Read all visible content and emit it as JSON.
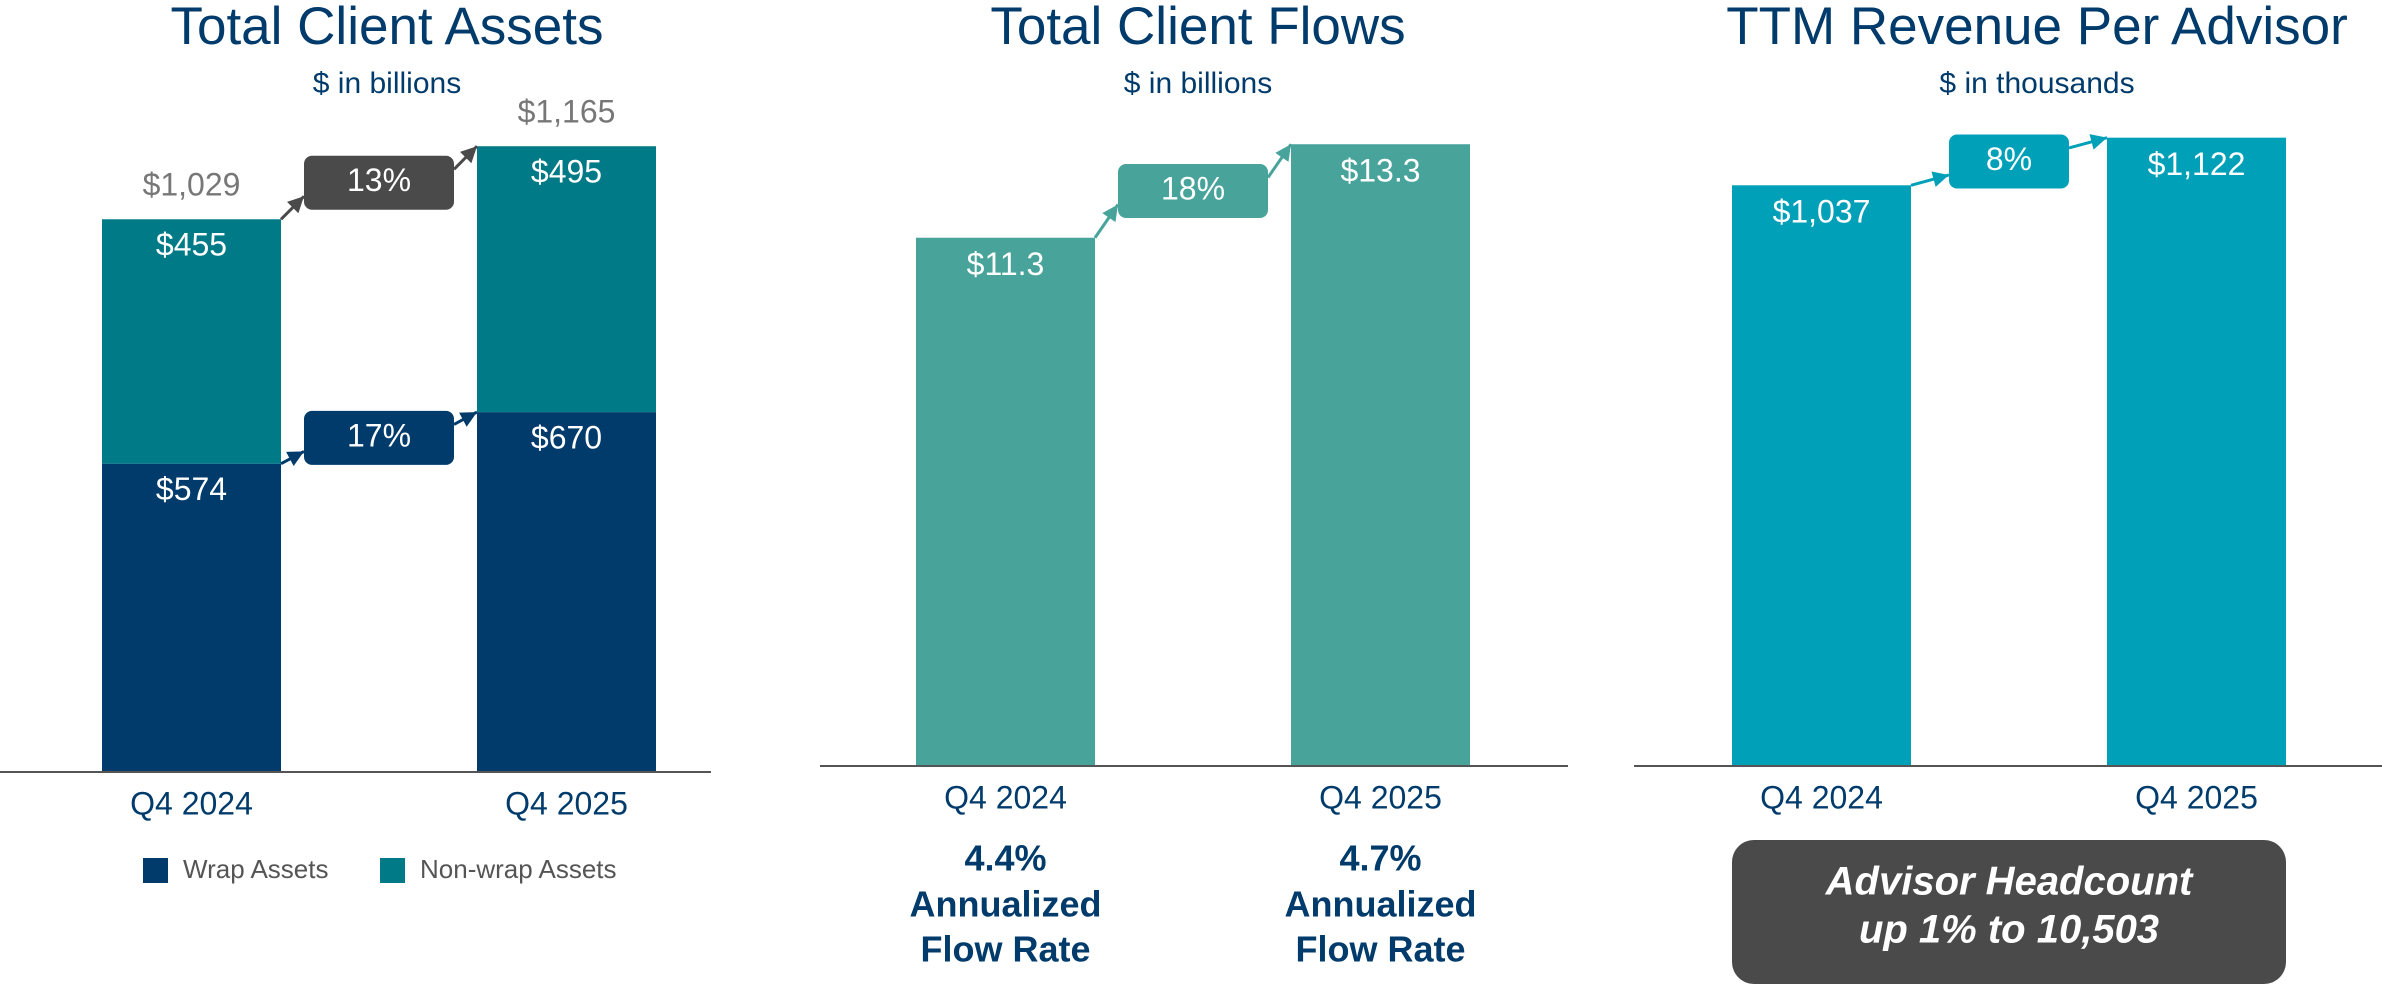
{
  "chart_data": [
    {
      "type": "stacked_bar",
      "title": "Total Client Assets",
      "subtitle": "$ in billions",
      "categories": [
        "Q4 2024",
        "Q4 2025"
      ],
      "series": [
        {
          "name": "Wrap Assets",
          "color": "#003b6b",
          "values": [
            574,
            670
          ],
          "value_labels": [
            "$574",
            "$670"
          ],
          "growth_label": "17%"
        },
        {
          "name": "Non-wrap Assets",
          "color": "#007a86",
          "values": [
            455,
            495
          ],
          "value_labels": [
            "$455",
            "$495"
          ]
        }
      ],
      "totals": [
        1029,
        1165
      ],
      "total_labels": [
        "$1,029",
        "$1,165"
      ],
      "total_growth_label": "13%",
      "total_growth_color": "#4a4a4a",
      "ylim": [
        0,
        1400
      ],
      "legend": "bottom"
    },
    {
      "type": "bar",
      "title": "Total Client Flows",
      "subtitle": "$ in billions",
      "categories": [
        "Q4 2024",
        "Q4 2025"
      ],
      "values": [
        11.3,
        13.3
      ],
      "value_labels": [
        "$11.3",
        "$13.3"
      ],
      "color": "#48a39b",
      "growth_label": "18%",
      "ylim": [
        0,
        16
      ],
      "flow_rate_labels": [
        "4.4%",
        "4.7%"
      ],
      "flow_rate_caption": [
        "Annualized",
        "Flow Rate"
      ]
    },
    {
      "type": "bar",
      "title": "TTM Revenue Per Advisor",
      "subtitle": "$ in thousands",
      "categories": [
        "Q4 2024",
        "Q4 2025"
      ],
      "values": [
        1037,
        1122
      ],
      "value_labels": [
        "$1,037",
        "$1,122"
      ],
      "color": "#00a0b8",
      "growth_label": "8%",
      "ylim": [
        0,
        1300
      ],
      "callout": [
        "Advisor Headcount",
        "up 1% to 10,503"
      ],
      "callout_color": "#4a4a4a"
    }
  ]
}
